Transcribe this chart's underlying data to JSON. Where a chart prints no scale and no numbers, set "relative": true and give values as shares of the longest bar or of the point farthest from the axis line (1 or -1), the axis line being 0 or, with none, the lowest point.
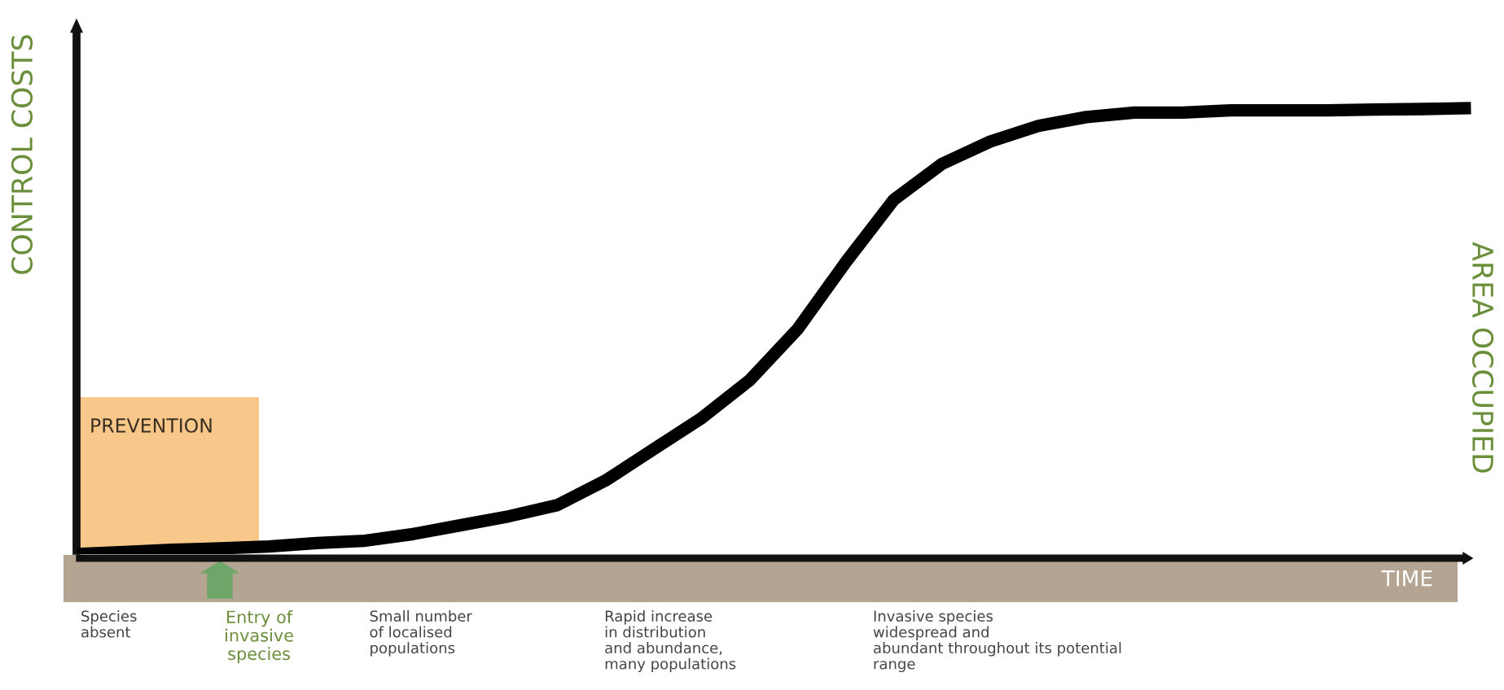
{
  "chart_data": {
    "type": "line",
    "relative": true,
    "ylabel": "CONTROL COSTS",
    "y2label": "AREA OCCUPIED",
    "xlabel": "TIME",
    "categories": [
      null,
      null,
      null,
      null,
      null,
      null,
      null,
      null,
      null,
      null,
      null,
      null,
      null,
      null,
      null,
      null,
      null,
      null,
      null,
      null,
      null,
      null,
      null,
      null,
      null,
      null,
      null,
      null,
      null,
      null
    ],
    "series": [
      {
        "color": "#000000",
        "values": [
          0.0,
          0.005,
          0.01,
          0.013,
          0.017,
          0.025,
          0.03,
          0.045,
          0.065,
          0.085,
          0.11,
          0.165,
          0.235,
          0.305,
          0.39,
          0.505,
          0.655,
          0.795,
          0.875,
          0.925,
          0.96,
          0.98,
          0.99,
          0.99,
          0.995,
          0.995,
          0.995,
          0.997,
          0.998,
          1.0
        ]
      }
    ],
    "annotations": [
      "PREVENTION",
      "Species\nabsent",
      "Entry of\ninvasive\nspecies",
      "Small number\nof localised\npopulations",
      "Rapid increase\nin distribution\nand abundance,\nmany populations",
      "Invasive species\nwidespread and\nabundant throughout its potential\nrange"
    ],
    "grid": false,
    "marker": "none",
    "line_style": "solid"
  }
}
